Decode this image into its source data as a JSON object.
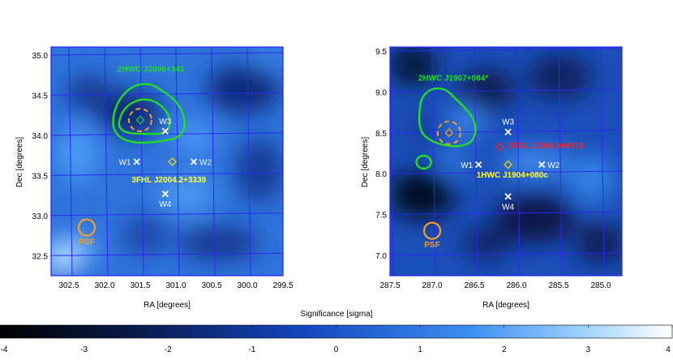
{
  "chart_data": [
    {
      "type": "heatmap",
      "xlabel": "RA [degrees]",
      "ylabel": "Dec [degrees]",
      "xlim": [
        302.75,
        299.5
      ],
      "ylim": [
        32.25,
        35.1
      ],
      "x_ticks": [
        "302.5",
        "302.0",
        "301.5",
        "301.0",
        "300.5",
        "300.0",
        "299.5"
      ],
      "x_tick_values": [
        302.5,
        302.0,
        301.5,
        301.0,
        300.5,
        300.0,
        299.5
      ],
      "y_ticks": [
        "32.5",
        "33.0",
        "33.5",
        "34.0",
        "34.5",
        "35.0"
      ],
      "y_tick_values": [
        32.5,
        33.0,
        33.5,
        34.0,
        34.5,
        35.0
      ],
      "annotations": [
        {
          "text": "2HWC J2006+341",
          "x": 301.35,
          "y": 34.79,
          "color": "#22dd22"
        },
        {
          "text": "3FHL J2004.2+3339",
          "x": 301.1,
          "y": 33.41,
          "color": "#ffff33"
        },
        {
          "text": "PSF",
          "x": 302.25,
          "y": 32.64,
          "color": "#f5a020"
        }
      ],
      "markers": [
        {
          "label": "W1",
          "x": 301.55,
          "y": 33.67,
          "text_side": "left"
        },
        {
          "label": "W2",
          "x": 300.75,
          "y": 33.67,
          "text_side": "right"
        },
        {
          "label": "W3",
          "x": 301.15,
          "y": 34.05,
          "text_side": "above"
        },
        {
          "label": "W4",
          "x": 301.15,
          "y": 33.27,
          "text_side": "below"
        }
      ],
      "sources": [
        {
          "name": "3FHL J2004.2+3339",
          "x": 301.05,
          "y": 33.67,
          "color": "#e8d800"
        },
        {
          "name": "2HWC J2006+341",
          "x": 301.5,
          "y": 34.19,
          "color": "#22cc22"
        }
      ],
      "psf_center": [
        302.25,
        32.85
      ],
      "colors": {
        "contour": "#22dd22",
        "circle": "#f5a020"
      }
    },
    {
      "type": "heatmap",
      "xlabel": "RA [degrees]",
      "ylabel": "Dec [degrees]",
      "xlim": [
        287.5,
        284.75
      ],
      "ylim": [
        6.75,
        9.55
      ],
      "x_ticks": [
        "287.5",
        "287.0",
        "286.5",
        "286.0",
        "285.5",
        "285.0"
      ],
      "x_tick_values": [
        287.5,
        287.0,
        286.5,
        286.0,
        285.5,
        285.0
      ],
      "y_ticks": [
        "7.0",
        "7.5",
        "8.0",
        "8.5",
        "9.0",
        "9.5"
      ],
      "y_tick_values": [
        7.0,
        7.5,
        8.0,
        8.5,
        9.0,
        9.5
      ],
      "annotations": [
        {
          "text": "2HWC J1907+084*",
          "x": 286.75,
          "y": 9.14,
          "color": "#22dd22"
        },
        {
          "text": "3FGL J1904.9+0818",
          "x": 285.65,
          "y": 8.31,
          "color": "#ff2222"
        },
        {
          "text": "1HWC J1904+080c",
          "x": 286.05,
          "y": 7.95,
          "color": "#ffff33"
        },
        {
          "text": "PSF",
          "x": 287.0,
          "y": 7.1,
          "color": "#f5a020"
        }
      ],
      "markers": [
        {
          "label": "W1",
          "x": 286.45,
          "y": 8.11,
          "text_side": "left"
        },
        {
          "label": "W2",
          "x": 285.7,
          "y": 8.11,
          "text_side": "right"
        },
        {
          "label": "W3",
          "x": 286.1,
          "y": 8.51,
          "text_side": "above"
        },
        {
          "label": "W4",
          "x": 286.1,
          "y": 7.72,
          "text_side": "below"
        }
      ],
      "sources": [
        {
          "name": "1HWC J1904+080c",
          "x": 286.1,
          "y": 8.11,
          "color": "#e8d800"
        },
        {
          "name": "3FGL J1904.9+0818",
          "x": 286.2,
          "y": 8.33,
          "color": "#ee2222"
        },
        {
          "name": "2HWC J1907+084*",
          "x": 286.8,
          "y": 8.5,
          "color": "#f5a020"
        }
      ],
      "psf_center": [
        287.0,
        7.3
      ],
      "colors": {
        "contour": "#22dd22",
        "circle": "#f5a020"
      }
    }
  ],
  "colorbar": {
    "label": "Significance [sigma]",
    "ticks": [
      "-4",
      "-3",
      "-2",
      "-1",
      "0",
      "1",
      "2",
      "3",
      "4"
    ],
    "range": [
      -4,
      4
    ],
    "colors": [
      "#000000",
      "#0a1e58",
      "#1450d0",
      "#3c8ef0",
      "#ffffff"
    ]
  }
}
